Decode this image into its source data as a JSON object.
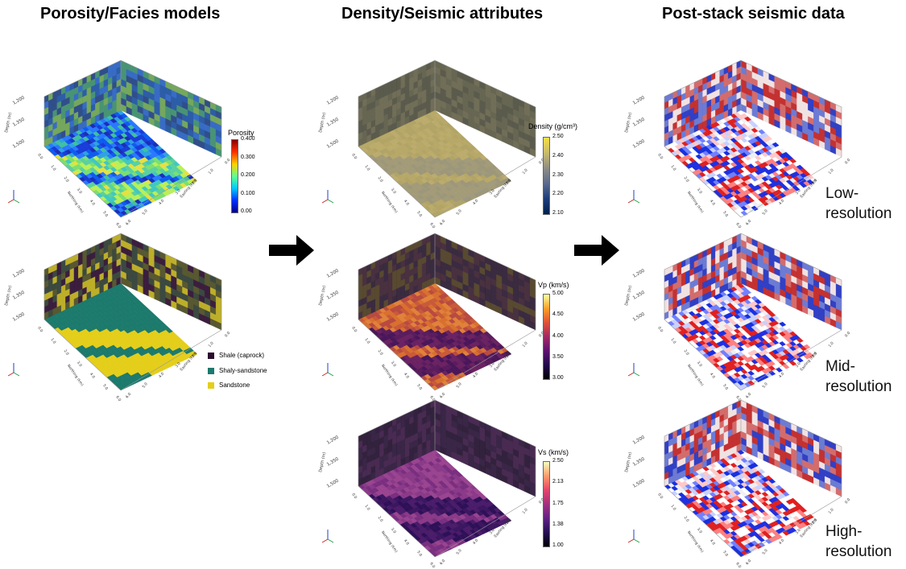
{
  "titles": {
    "col1": "Porosity/Facies models",
    "col2": "Density/Seismic attributes",
    "col3": "Post-stack seismic data"
  },
  "resolutions": {
    "low": "Low-\nresolution",
    "mid": "Mid-\nresolution",
    "high": "High-\nresolution"
  },
  "axes": {
    "depth_label": "Depth (m)",
    "depth_ticks": [
      "1,200",
      "1,350",
      "1,500"
    ],
    "northing_label": "Northing (km)",
    "easting_label": "Easting (km)",
    "horizontal_ticks": [
      "0.0",
      "1.0",
      "2.0",
      "3.0",
      "4.0",
      "5.0",
      "6.0"
    ]
  },
  "colorbars": {
    "porosity": {
      "title": "Porosity",
      "ticks": [
        "0.400",
        "0.300",
        "0.200",
        "0.100",
        "0.00"
      ],
      "colors": [
        "#8b0000",
        "#ff3000",
        "#ffd000",
        "#60ff90",
        "#00c8ff",
        "#0030ff",
        "#00008b"
      ]
    },
    "density": {
      "title": "Density (g/cm³)",
      "ticks": [
        "2.50",
        "2.40",
        "2.30",
        "2.20",
        "2.10"
      ],
      "colors": [
        "#f4e047",
        "#c8bb6e",
        "#8f8e86",
        "#5c6b8c",
        "#1d3d78",
        "#00204d"
      ]
    },
    "vp": {
      "title": "Vp (km/s)",
      "ticks": [
        "5.00",
        "4.50",
        "4.00",
        "3.50",
        "3.00"
      ],
      "colors": [
        "#fcffa4",
        "#f9a028",
        "#dd513a",
        "#a02a64",
        "#5e126e",
        "#200c4a",
        "#000004"
      ]
    },
    "vs": {
      "title": "Vs (km/s)",
      "ticks": [
        "2.50",
        "2.13",
        "1.75",
        "1.38",
        "1.00"
      ],
      "colors": [
        "#fcfdbf",
        "#fd9b6b",
        "#e2466b",
        "#a2307e",
        "#602383",
        "#231151",
        "#000004"
      ]
    }
  },
  "facies_legend": [
    {
      "label": "Shale (caprock)",
      "color": "#2b0c2e"
    },
    {
      "label": "Shaly-sandstone",
      "color": "#1c7a6c"
    },
    {
      "label": "Sandstone",
      "color": "#e4ce1a"
    }
  ],
  "palettes": {
    "porosity": {
      "floor": [
        "#1a3cd8",
        "#0f5bf0",
        "#2a78ff",
        "#1a2fb8",
        "#2fa2e0",
        "#40c0a0"
      ],
      "band": [
        "#7ae070",
        "#b8f05a",
        "#40c8c0",
        "#e8e040",
        "#5ad0a0"
      ],
      "wall": [
        "#1c50a0",
        "#3a8a6a",
        "#204080",
        "#6aa050",
        "#2860c0"
      ]
    },
    "facies": {
      "floor": [
        "#1c7a6c"
      ],
      "band": [
        "#e4ce1a"
      ],
      "wall": [
        "#2b0c2e",
        "#4a4a20",
        "#b8a818",
        "#2b3a30"
      ]
    },
    "density": {
      "floor": [
        "#b7a868",
        "#b1a466",
        "#bcac6c"
      ],
      "band": [
        "#a39b78",
        "#9d977a"
      ],
      "wall": [
        "#5a5a45",
        "#4e4e3e",
        "#66624a"
      ]
    },
    "vp": {
      "floor": [
        "#d8702e",
        "#c95a38",
        "#e0823a",
        "#b84a40"
      ],
      "band": [
        "#5a1c5c",
        "#4a165a",
        "#6b2262"
      ],
      "wall": [
        "#3a2030",
        "#4a3a20",
        "#2a1a30"
      ]
    },
    "vs": {
      "floor": [
        "#8a3a88",
        "#9a4490",
        "#7a2e80"
      ],
      "band": [
        "#3c1660",
        "#4a1c6a",
        "#2e1058"
      ],
      "wall": [
        "#2a1438",
        "#3a1a44",
        "#22102e"
      ]
    },
    "seismic": {
      "floor": [
        "#ffffff",
        "#c8d0ff",
        "#1830e0",
        "#ffc8c8",
        "#e02020",
        "#7080ff",
        "#f0f0f0"
      ],
      "band": [
        "#e02020",
        "#ff8080",
        "#ffffff",
        "#2030e0"
      ],
      "wall": [
        "#2030c0",
        "#c02020",
        "#f0e0e0",
        "#6070d0",
        "#d06060"
      ]
    }
  }
}
